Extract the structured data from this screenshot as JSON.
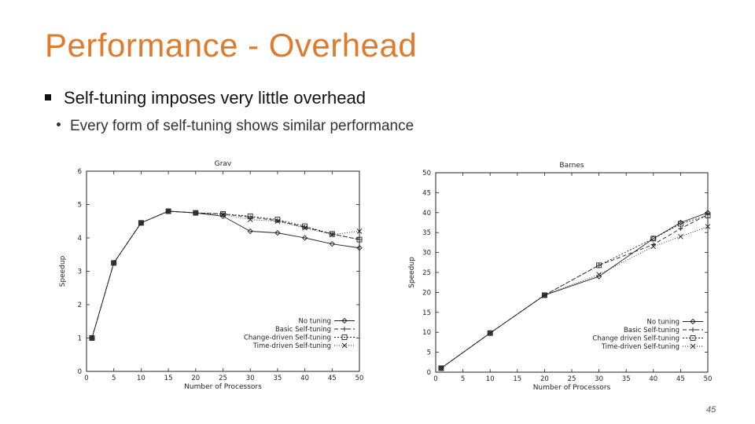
{
  "slide": {
    "title": "Performance - Overhead",
    "bullet_main": "Self-tuning imposes very little overhead",
    "bullet_sub": "Every form of self-tuning shows similar performance",
    "page_number": "45"
  },
  "colors": {
    "title": "#e07b2c",
    "series": "#222222"
  },
  "chart_data": [
    {
      "type": "line",
      "title": "Grav",
      "xlabel": "Number of Processors",
      "ylabel": "Speedup",
      "xlim": [
        0,
        50
      ],
      "ylim": [
        0,
        6
      ],
      "xticks": [
        0,
        5,
        10,
        15,
        20,
        25,
        30,
        35,
        40,
        45,
        50
      ],
      "yticks": [
        0,
        1,
        2,
        3,
        4,
        5,
        6
      ],
      "legend_position": "bottom-right",
      "x": [
        1,
        5,
        10,
        15,
        20,
        25,
        30,
        35,
        40,
        45,
        50
      ],
      "series": [
        {
          "name": "No tuning",
          "marker": "diamond",
          "dash": "",
          "values": [
            1,
            3.25,
            4.45,
            4.8,
            4.75,
            4.65,
            4.2,
            4.15,
            4.0,
            3.82,
            3.7
          ]
        },
        {
          "name": "Basic Self-tuning",
          "marker": "plus",
          "dash": "5,3",
          "values": [
            1,
            3.25,
            4.45,
            4.8,
            4.75,
            4.72,
            4.62,
            4.52,
            4.32,
            4.12,
            3.95
          ]
        },
        {
          "name": "Change-driven Self-tuning",
          "marker": "square",
          "dash": "2,2",
          "values": [
            1,
            3.25,
            4.45,
            4.8,
            4.75,
            4.72,
            4.65,
            4.55,
            4.35,
            4.12,
            3.95
          ]
        },
        {
          "name": "Time-driven Self-tuning",
          "marker": "x",
          "dash": "1,2",
          "values": [
            1,
            3.25,
            4.45,
            4.8,
            4.75,
            4.7,
            4.55,
            4.5,
            4.3,
            4.1,
            4.2
          ]
        }
      ]
    },
    {
      "type": "line",
      "title": "Barnes",
      "xlabel": "Number of Processors",
      "ylabel": "Speedup",
      "xlim": [
        0,
        50
      ],
      "ylim": [
        0,
        50
      ],
      "xticks": [
        0,
        5,
        10,
        15,
        20,
        25,
        30,
        35,
        40,
        45,
        50
      ],
      "yticks": [
        0,
        5,
        10,
        15,
        20,
        25,
        30,
        35,
        40,
        45,
        50
      ],
      "legend_position": "bottom-right",
      "x": [
        1,
        10,
        20,
        30,
        40,
        45,
        50
      ],
      "series": [
        {
          "name": "No tuning",
          "marker": "diamond",
          "dash": "",
          "values": [
            1,
            9.8,
            19.3,
            24,
            33.5,
            37.5,
            40
          ]
        },
        {
          "name": "Basic Self-tuning",
          "marker": "plus",
          "dash": "5,3",
          "values": [
            1,
            9.8,
            19.3,
            26.8,
            32,
            36,
            39.5
          ]
        },
        {
          "name": "Change driven Self-tuning",
          "marker": "square",
          "dash": "2,2",
          "values": [
            1,
            9.8,
            19.3,
            26.8,
            33.5,
            37.2,
            39.3
          ]
        },
        {
          "name": "Time-driven Self-tuning",
          "marker": "x",
          "dash": "1,2",
          "values": [
            1,
            9.8,
            19.3,
            24.5,
            31.5,
            34,
            36.5
          ]
        }
      ]
    }
  ]
}
